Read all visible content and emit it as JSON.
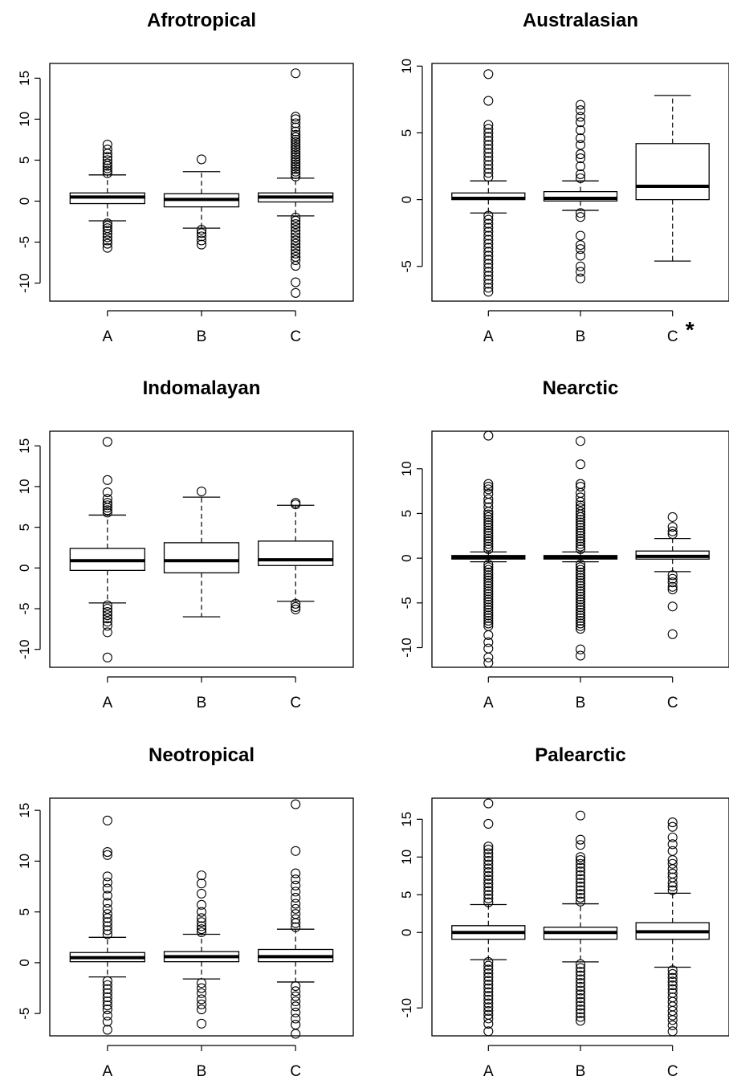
{
  "chart_data": [
    {
      "type": "boxplot",
      "title": "Afrotropical",
      "categories": [
        "A",
        "B",
        "C"
      ],
      "y_ticks": [
        -10,
        -5,
        0,
        5,
        10,
        15
      ],
      "ylim": [
        -12.2,
        16.8
      ],
      "boxes": [
        {
          "category": "A",
          "whisker_low": -2.4,
          "q1": -0.3,
          "median": 0.5,
          "q3": 1.0,
          "whisker_high": 3.2,
          "outliers": [
            3.4,
            3.7,
            4.0,
            4.3,
            4.6,
            5.0,
            5.4,
            5.8,
            6.3,
            6.9,
            -2.7,
            -3.0,
            -3.3,
            -3.6,
            -4.0,
            -4.4,
            -4.8,
            -5.2,
            -5.7
          ]
        },
        {
          "category": "B",
          "whisker_low": -3.3,
          "q1": -0.7,
          "median": 0.2,
          "q3": 0.9,
          "whisker_high": 3.6,
          "outliers": [
            5.1,
            -3.5,
            -3.9,
            -4.3,
            -4.8,
            -5.3
          ]
        },
        {
          "category": "C",
          "whisker_low": -1.8,
          "q1": -0.1,
          "median": 0.5,
          "q3": 1.0,
          "whisker_high": 2.8,
          "outliers": [
            3.0,
            3.3,
            3.6,
            3.9,
            4.2,
            4.5,
            4.8,
            5.1,
            5.4,
            5.7,
            6.0,
            6.3,
            6.6,
            6.9,
            7.2,
            7.5,
            7.8,
            8.1,
            8.5,
            9.0,
            9.5,
            10.0,
            10.3,
            15.6,
            -2.0,
            -2.4,
            -2.8,
            -3.2,
            -3.6,
            -4.0,
            -4.4,
            -4.8,
            -5.2,
            -5.6,
            -6.0,
            -6.4,
            -6.8,
            -7.2,
            -7.9,
            -9.9,
            -11.2
          ]
        }
      ]
    },
    {
      "type": "boxplot",
      "title": "Australasian",
      "categories": [
        "A",
        "B",
        "C"
      ],
      "x_annotation": "*",
      "y_ticks": [
        -5,
        0,
        5,
        10
      ],
      "ylim": [
        -7.6,
        10.2
      ],
      "boxes": [
        {
          "category": "A",
          "whisker_low": -1.0,
          "q1": 0.0,
          "median": 0.1,
          "q3": 0.5,
          "whisker_high": 1.4,
          "outliers": [
            1.7,
            2.0,
            2.3,
            2.6,
            2.9,
            3.2,
            3.5,
            3.8,
            4.1,
            4.4,
            4.7,
            5.0,
            5.3,
            5.6,
            7.4,
            9.4,
            -1.2,
            -1.5,
            -1.8,
            -2.1,
            -2.4,
            -2.7,
            -3.0,
            -3.3,
            -3.6,
            -3.9,
            -4.2,
            -4.5,
            -4.8,
            -5.1,
            -5.4,
            -5.7,
            -6.0,
            -6.3,
            -6.6,
            -6.9
          ]
        },
        {
          "category": "B",
          "whisker_low": -0.8,
          "q1": -0.1,
          "median": 0.1,
          "q3": 0.6,
          "whisker_high": 1.4,
          "outliers": [
            1.6,
            1.9,
            2.5,
            3.1,
            3.4,
            4.1,
            4.6,
            5.2,
            5.8,
            6.2,
            6.7,
            7.1,
            -1.0,
            -1.3,
            -2.7,
            -3.4,
            -3.7,
            -4.2,
            -5.0,
            -5.4,
            -5.9
          ]
        },
        {
          "category": "C",
          "whisker_low": -4.6,
          "q1": 0.0,
          "median": 1.0,
          "q3": 4.2,
          "whisker_high": 7.8,
          "outliers": []
        }
      ]
    },
    {
      "type": "boxplot",
      "title": "Indomalayan",
      "categories": [
        "A",
        "B",
        "C"
      ],
      "y_ticks": [
        -10,
        -5,
        0,
        5,
        10,
        15
      ],
      "ylim": [
        -12.2,
        16.8
      ],
      "boxes": [
        {
          "category": "A",
          "whisker_low": -4.3,
          "q1": -0.3,
          "median": 0.9,
          "q3": 2.4,
          "whisker_high": 6.5,
          "outliers": [
            6.8,
            7.1,
            7.4,
            7.7,
            8.0,
            8.5,
            9.3,
            10.8,
            15.5,
            -4.6,
            -5.0,
            -5.4,
            -5.8,
            -6.2,
            -6.6,
            -7.1,
            -7.9,
            -11.0
          ]
        },
        {
          "category": "B",
          "whisker_low": -6.0,
          "q1": -0.6,
          "median": 0.9,
          "q3": 3.1,
          "whisker_high": 8.7,
          "outliers": [
            9.4
          ]
        },
        {
          "category": "C",
          "whisker_low": -4.1,
          "q1": 0.3,
          "median": 1.0,
          "q3": 3.3,
          "whisker_high": 7.7,
          "outliers": [
            7.8,
            8.0,
            -4.4,
            -4.8,
            -5.1
          ]
        }
      ]
    },
    {
      "type": "boxplot",
      "title": "Nearctic",
      "categories": [
        "A",
        "B",
        "C"
      ],
      "y_ticks": [
        -10,
        -5,
        0,
        5,
        10
      ],
      "ylim": [
        -12.2,
        14.2
      ],
      "boxes": [
        {
          "category": "A",
          "whisker_low": -0.4,
          "q1": -0.1,
          "median": 0.1,
          "q3": 0.3,
          "whisker_high": 0.7,
          "outliers": [
            1.0,
            1.3,
            1.6,
            1.9,
            2.2,
            2.5,
            2.8,
            3.1,
            3.4,
            3.7,
            4.0,
            4.3,
            4.6,
            4.9,
            5.2,
            5.7,
            6.2,
            6.6,
            7.2,
            7.7,
            8.0,
            8.3,
            13.7,
            -0.7,
            -1.0,
            -1.3,
            -1.6,
            -1.9,
            -2.2,
            -2.5,
            -2.8,
            -3.1,
            -3.4,
            -3.7,
            -4.0,
            -4.3,
            -4.6,
            -4.9,
            -5.2,
            -5.5,
            -5.8,
            -6.1,
            -6.4,
            -6.7,
            -7.0,
            -7.3,
            -7.6,
            -8.6,
            -9.4,
            -10.1,
            -11.1,
            -11.7
          ]
        },
        {
          "category": "B",
          "whisker_low": -0.4,
          "q1": -0.1,
          "median": 0.1,
          "q3": 0.3,
          "whisker_high": 0.7,
          "outliers": [
            1.0,
            1.3,
            1.6,
            1.9,
            2.2,
            2.5,
            2.8,
            3.1,
            3.4,
            3.7,
            4.0,
            4.3,
            4.6,
            4.9,
            5.2,
            5.6,
            5.9,
            6.3,
            6.8,
            7.3,
            8.0,
            8.3,
            10.5,
            13.1,
            -0.7,
            -1.0,
            -1.3,
            -1.6,
            -1.9,
            -2.2,
            -2.5,
            -2.8,
            -3.1,
            -3.4,
            -3.7,
            -4.0,
            -4.3,
            -4.6,
            -4.9,
            -5.2,
            -5.5,
            -5.8,
            -6.1,
            -6.4,
            -6.7,
            -7.0,
            -7.3,
            -7.6,
            -7.9,
            -10.2,
            -10.9
          ]
        },
        {
          "category": "C",
          "whisker_low": -1.5,
          "q1": -0.1,
          "median": 0.2,
          "q3": 0.8,
          "whisker_high": 2.2,
          "outliers": [
            2.7,
            3.0,
            3.5,
            4.6,
            -1.9,
            -2.3,
            -2.7,
            -3.2,
            -3.5,
            -5.4,
            -8.5
          ]
        }
      ]
    },
    {
      "type": "boxplot",
      "title": "Neotropical",
      "categories": [
        "A",
        "B",
        "C"
      ],
      "y_ticks": [
        -5,
        0,
        5,
        10,
        15
      ],
      "ylim": [
        -7.2,
        16.2
      ],
      "boxes": [
        {
          "category": "A",
          "whisker_low": -1.4,
          "q1": 0.1,
          "median": 0.5,
          "q3": 1.0,
          "whisker_high": 2.5,
          "outliers": [
            2.8,
            3.2,
            3.6,
            4.0,
            4.4,
            4.8,
            5.3,
            5.9,
            6.6,
            7.3,
            7.9,
            8.5,
            10.6,
            10.9,
            14.0,
            -1.8,
            -2.2,
            -2.6,
            -3.0,
            -3.4,
            -3.8,
            -4.2,
            -4.6,
            -5.2,
            -5.8,
            -6.6
          ]
        },
        {
          "category": "B",
          "whisker_low": -1.6,
          "q1": 0.1,
          "median": 0.6,
          "q3": 1.1,
          "whisker_high": 2.8,
          "outliers": [
            3.0,
            3.3,
            3.6,
            4.0,
            4.4,
            5.0,
            5.7,
            6.8,
            7.8,
            8.6,
            -2.0,
            -2.5,
            -3.0,
            -3.6,
            -4.1,
            -4.6,
            -6.0
          ]
        },
        {
          "category": "C",
          "whisker_low": -1.9,
          "q1": 0.1,
          "median": 0.6,
          "q3": 1.3,
          "whisker_high": 3.3,
          "outliers": [
            3.5,
            3.9,
            4.3,
            4.8,
            5.3,
            5.8,
            6.4,
            7.0,
            7.6,
            8.2,
            8.8,
            11.0,
            15.6,
            -2.3,
            -2.8,
            -3.3,
            -3.8,
            -4.3,
            -4.9,
            -5.5,
            -6.1,
            -7.0
          ]
        }
      ]
    },
    {
      "type": "boxplot",
      "title": "Palearctic",
      "categories": [
        "A",
        "B",
        "C"
      ],
      "y_ticks": [
        -10,
        0,
        5,
        10,
        15
      ],
      "ylim": [
        -13.7,
        17.8
      ],
      "boxes": [
        {
          "category": "A",
          "whisker_low": -3.6,
          "q1": -0.9,
          "median": 0.0,
          "q3": 0.9,
          "whisker_high": 3.7,
          "outliers": [
            4.0,
            4.5,
            5.0,
            5.5,
            6.0,
            6.5,
            7.0,
            7.5,
            8.0,
            8.5,
            9.0,
            9.5,
            10.0,
            10.5,
            11.0,
            11.4,
            14.4,
            17.1,
            -3.9,
            -4.4,
            -4.9,
            -5.4,
            -5.9,
            -6.4,
            -6.9,
            -7.4,
            -7.9,
            -8.4,
            -8.9,
            -9.4,
            -9.9,
            -10.4,
            -10.9,
            -11.4,
            -12.1,
            -13.1
          ]
        },
        {
          "category": "B",
          "whisker_low": -3.9,
          "q1": -0.9,
          "median": 0.0,
          "q3": 0.7,
          "whisker_high": 3.8,
          "outliers": [
            4.1,
            4.6,
            5.1,
            5.6,
            6.1,
            6.6,
            7.1,
            7.6,
            8.1,
            8.6,
            9.1,
            9.6,
            10.0,
            11.6,
            12.3,
            15.5,
            -4.2,
            -4.7,
            -5.2,
            -5.7,
            -6.2,
            -6.7,
            -7.2,
            -7.7,
            -8.2,
            -8.7,
            -9.2,
            -9.7,
            -10.2,
            -10.7,
            -11.2,
            -11.7
          ]
        },
        {
          "category": "C",
          "whisker_low": -4.6,
          "q1": -0.9,
          "median": 0.1,
          "q3": 1.3,
          "whisker_high": 5.2,
          "outliers": [
            5.6,
            6.1,
            6.6,
            7.3,
            7.8,
            8.4,
            9.1,
            9.6,
            10.8,
            11.7,
            12.6,
            14.0,
            14.6,
            -5.0,
            -5.5,
            -6.0,
            -6.5,
            -7.0,
            -7.5,
            -8.0,
            -8.6,
            -9.2,
            -9.8,
            -10.4,
            -11.0,
            -11.6,
            -12.3,
            -13.1
          ]
        }
      ]
    }
  ]
}
